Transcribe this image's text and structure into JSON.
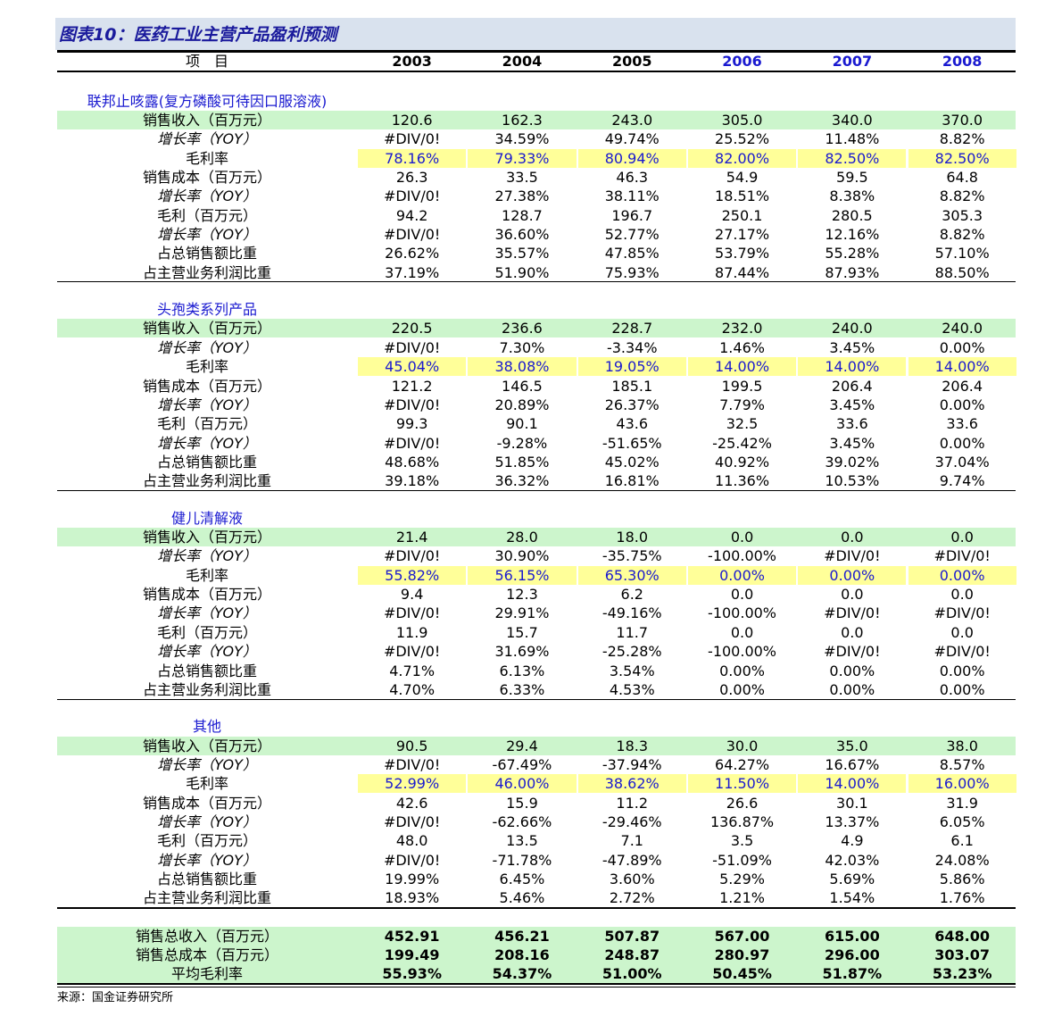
{
  "title": "图表10：医药工业主营产品盈利预测",
  "header": [
    "项　目",
    "2003",
    "2004",
    "2005",
    "2006",
    "2007",
    "2008"
  ],
  "sections": [
    {
      "name": "联邦止咳露(复方磷酸可待因口服溶液)",
      "rows": [
        {
          "label": "销售收入（百万元）",
          "values": [
            "120.6",
            "162.3",
            "243.0",
            "305.0",
            "340.0",
            "370.0"
          ]
        },
        {
          "label": "增长率（YOY）",
          "values": [
            "#DIV/0!",
            "34.59%",
            "49.74%",
            "25.52%",
            "11.48%",
            "8.82%"
          ]
        },
        {
          "label": "毛利率",
          "values": [
            "78.16%",
            "79.33%",
            "80.94%",
            "82.00%",
            "82.50%",
            "82.50%"
          ]
        },
        {
          "label": "销售成本（百万元）",
          "values": [
            "26.3",
            "33.5",
            "46.3",
            "54.9",
            "59.5",
            "64.8"
          ]
        },
        {
          "label": "增长率（YOY）",
          "values": [
            "#DIV/0!",
            "27.38%",
            "38.11%",
            "18.51%",
            "8.38%",
            "8.82%"
          ]
        },
        {
          "label": "毛利（百万元）",
          "values": [
            "94.2",
            "128.7",
            "196.7",
            "250.1",
            "280.5",
            "305.3"
          ]
        },
        {
          "label": "增长率（YOY）",
          "values": [
            "#DIV/0!",
            "36.60%",
            "52.77%",
            "27.17%",
            "12.16%",
            "8.82%"
          ]
        },
        {
          "label": "占总销售额比重",
          "values": [
            "26.62%",
            "35.57%",
            "47.85%",
            "53.79%",
            "55.28%",
            "57.10%"
          ]
        },
        {
          "label": "占主营业务利润比重",
          "values": [
            "37.19%",
            "51.90%",
            "75.93%",
            "87.44%",
            "87.93%",
            "88.50%"
          ]
        }
      ]
    },
    {
      "name": "头孢类系列产品",
      "rows": [
        {
          "label": "销售收入（百万元）",
          "values": [
            "220.5",
            "236.6",
            "228.7",
            "232.0",
            "240.0",
            "240.0"
          ]
        },
        {
          "label": "增长率（YOY）",
          "values": [
            "#DIV/0!",
            "7.30%",
            "-3.34%",
            "1.46%",
            "3.45%",
            "0.00%"
          ]
        },
        {
          "label": "毛利率",
          "values": [
            "45.04%",
            "38.08%",
            "19.05%",
            "14.00%",
            "14.00%",
            "14.00%"
          ]
        },
        {
          "label": "销售成本（百万元）",
          "values": [
            "121.2",
            "146.5",
            "185.1",
            "199.5",
            "206.4",
            "206.4"
          ]
        },
        {
          "label": "增长率（YOY）",
          "values": [
            "#DIV/0!",
            "20.89%",
            "26.37%",
            "7.79%",
            "3.45%",
            "0.00%"
          ]
        },
        {
          "label": "毛利（百万元）",
          "values": [
            "99.3",
            "90.1",
            "43.6",
            "32.5",
            "33.6",
            "33.6"
          ]
        },
        {
          "label": "增长率（YOY）",
          "values": [
            "#DIV/0!",
            "-9.28%",
            "-51.65%",
            "-25.42%",
            "3.45%",
            "0.00%"
          ]
        },
        {
          "label": "占总销售额比重",
          "values": [
            "48.68%",
            "51.85%",
            "45.02%",
            "40.92%",
            "39.02%",
            "37.04%"
          ]
        },
        {
          "label": "占主营业务利润比重",
          "values": [
            "39.18%",
            "36.32%",
            "16.81%",
            "11.36%",
            "10.53%",
            "9.74%"
          ]
        }
      ]
    },
    {
      "name": "健儿清解液",
      "rows": [
        {
          "label": "销售收入（百万元）",
          "values": [
            "21.4",
            "28.0",
            "18.0",
            "0.0",
            "0.0",
            "0.0"
          ]
        },
        {
          "label": "增长率（YOY）",
          "values": [
            "#DIV/0!",
            "30.90%",
            "-35.75%",
            "-100.00%",
            "#DIV/0!",
            "#DIV/0!"
          ]
        },
        {
          "label": "毛利率",
          "values": [
            "55.82%",
            "56.15%",
            "65.30%",
            "0.00%",
            "0.00%",
            "0.00%"
          ]
        },
        {
          "label": "销售成本（百万元）",
          "values": [
            "9.4",
            "12.3",
            "6.2",
            "0.0",
            "0.0",
            "0.0"
          ]
        },
        {
          "label": "增长率（YOY）",
          "values": [
            "#DIV/0!",
            "29.91%",
            "-49.16%",
            "-100.00%",
            "#DIV/0!",
            "#DIV/0!"
          ]
        },
        {
          "label": "毛利（百万元）",
          "values": [
            "11.9",
            "15.7",
            "11.7",
            "0.0",
            "0.0",
            "0.0"
          ]
        },
        {
          "label": "增长率（YOY）",
          "values": [
            "#DIV/0!",
            "31.69%",
            "-25.28%",
            "-100.00%",
            "#DIV/0!",
            "#DIV/0!"
          ]
        },
        {
          "label": "占总销售额比重",
          "values": [
            "4.71%",
            "6.13%",
            "3.54%",
            "0.00%",
            "0.00%",
            "0.00%"
          ]
        },
        {
          "label": "占主营业务利润比重",
          "values": [
            "4.70%",
            "6.33%",
            "4.53%",
            "0.00%",
            "0.00%",
            "0.00%"
          ]
        }
      ]
    },
    {
      "name": "其他",
      "rows": [
        {
          "label": "销售收入（百万元）",
          "values": [
            "90.5",
            "29.4",
            "18.3",
            "30.0",
            "35.0",
            "38.0"
          ]
        },
        {
          "label": "增长率（YOY）",
          "values": [
            "#DIV/0!",
            "-67.49%",
            "-37.94%",
            "64.27%",
            "16.67%",
            "8.57%"
          ]
        },
        {
          "label": "毛利率",
          "values": [
            "52.99%",
            "46.00%",
            "38.62%",
            "11.50%",
            "14.00%",
            "16.00%"
          ]
        },
        {
          "label": "销售成本（百万元）",
          "values": [
            "42.6",
            "15.9",
            "11.2",
            "26.6",
            "30.1",
            "31.9"
          ]
        },
        {
          "label": "增长率（YOY）",
          "values": [
            "#DIV/0!",
            "-62.66%",
            "-29.46%",
            "136.87%",
            "13.37%",
            "6.05%"
          ]
        },
        {
          "label": "毛利（百万元）",
          "values": [
            "48.0",
            "13.5",
            "7.1",
            "3.5",
            "4.9",
            "6.1"
          ]
        },
        {
          "label": "增长率（YOY）",
          "values": [
            "#DIV/0!",
            "-71.78%",
            "-47.89%",
            "-51.09%",
            "42.03%",
            "24.08%"
          ]
        },
        {
          "label": "占总销售额比重",
          "values": [
            "19.99%",
            "6.45%",
            "3.60%",
            "5.29%",
            "5.69%",
            "5.86%"
          ]
        },
        {
          "label": "占主营业务利润比重",
          "values": [
            "18.93%",
            "5.46%",
            "2.72%",
            "1.21%",
            "1.54%",
            "1.76%"
          ]
        }
      ]
    }
  ],
  "totals": [
    {
      "label": "销售总收入（百万元）",
      "values": [
        "452.91",
        "456.21",
        "507.87",
        "567.00",
        "615.00",
        "648.00"
      ]
    },
    {
      "label": "销售总成本（百万元）",
      "values": [
        "199.49",
        "208.16",
        "248.87",
        "280.97",
        "296.00",
        "303.07"
      ]
    },
    {
      "label": "平均毛利率",
      "values": [
        "55.93%",
        "54.37%",
        "51.00%",
        "50.45%",
        "51.87%",
        "53.23%"
      ]
    }
  ],
  "source": "来源：国金证券研究所"
}
